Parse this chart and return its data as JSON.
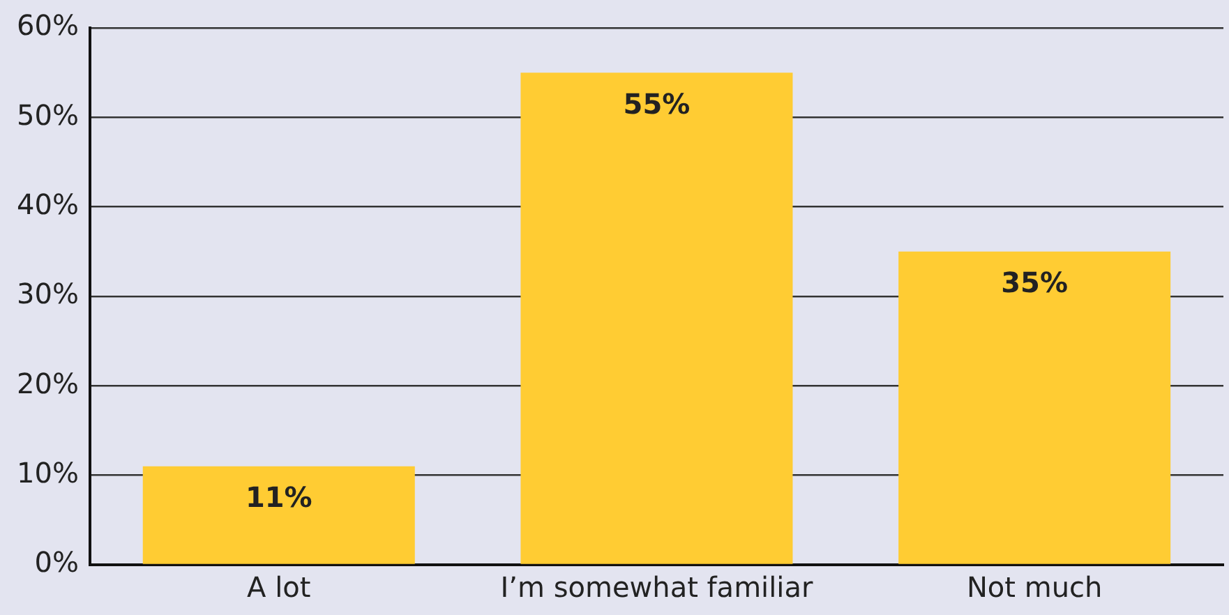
{
  "chart_data": {
    "type": "bar",
    "categories": [
      "A lot",
      "I’m somewhat familiar",
      "Not much"
    ],
    "values": [
      11,
      55,
      35
    ],
    "color": "#ffcc33",
    "value_labels": [
      "11%",
      "55%",
      "35%"
    ],
    "ylim": [
      0,
      60
    ],
    "yticks": [
      {
        "value": 0,
        "label": "0%"
      },
      {
        "value": 10,
        "label": "10%"
      },
      {
        "value": 20,
        "label": "20%"
      },
      {
        "value": 30,
        "label": "30%"
      },
      {
        "value": 40,
        "label": "40%"
      },
      {
        "value": 50,
        "label": "50%"
      },
      {
        "value": 60,
        "label": "60%"
      }
    ],
    "grid": "y",
    "legend": false
  }
}
